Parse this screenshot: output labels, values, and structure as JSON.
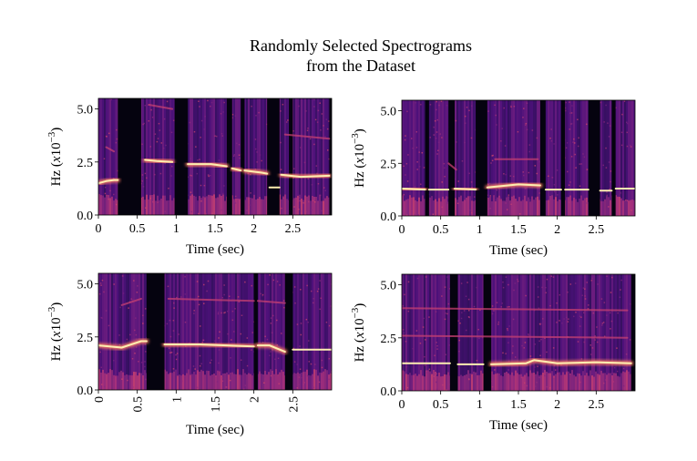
{
  "figure": {
    "title_lines": [
      "Randomly Selected Spectrograms",
      "from the Dataset"
    ]
  },
  "chart_data": [
    {
      "type": "heatmap",
      "title": "",
      "xlabel": "Time (sec)",
      "ylabel": "Hz (x10^-3)",
      "ylabel_parts": {
        "main": "Hz (",
        "italic": "x",
        "num": "10",
        "sup": "−3",
        "close": ")"
      },
      "xlim": [
        0,
        3.0
      ],
      "ylim": [
        0,
        5.5
      ],
      "xticks": [
        0,
        0.5,
        1,
        1.5,
        2,
        2.5
      ],
      "xtick_labels": [
        "0",
        "0.5",
        "1",
        "1.5",
        "2",
        "2.5"
      ],
      "xtick_rotation": 0,
      "yticks": [
        0,
        2.5,
        5
      ],
      "ytick_labels": [
        "0.0",
        "2.5",
        "5.0"
      ],
      "colormap": "magma",
      "gaps": [
        [
          0.25,
          0.55
        ],
        [
          0.98,
          1.15
        ],
        [
          1.65,
          1.72
        ],
        [
          1.83,
          1.88
        ],
        [
          2.17,
          2.33
        ],
        [
          2.45,
          2.5
        ],
        [
          2.97,
          3.0
        ]
      ],
      "contours": [
        {
          "x": [
            0.0,
            0.1,
            0.2,
            0.25
          ],
          "y": [
            1.5,
            1.6,
            1.65,
            1.65
          ]
        },
        {
          "x": [
            0.6,
            0.75,
            0.95
          ],
          "y": [
            2.6,
            2.55,
            2.5
          ]
        },
        {
          "x": [
            1.15,
            1.45,
            1.65
          ],
          "y": [
            2.4,
            2.4,
            2.3
          ]
        },
        {
          "x": [
            1.72,
            1.83
          ],
          "y": [
            2.2,
            2.1
          ]
        },
        {
          "x": [
            1.88,
            2.1,
            2.17
          ],
          "y": [
            2.1,
            2.0,
            1.95
          ]
        },
        {
          "x": [
            2.2,
            2.33
          ],
          "y": [
            1.3,
            1.3
          ]
        },
        {
          "x": [
            2.35,
            2.6,
            2.97
          ],
          "y": [
            1.9,
            1.8,
            1.85
          ]
        }
      ],
      "harmonics": [
        {
          "x": [
            0.1,
            0.2
          ],
          "y": [
            3.2,
            3.0
          ]
        },
        {
          "x": [
            2.4,
            2.97
          ],
          "y": [
            3.8,
            3.6
          ]
        },
        {
          "x": [
            0.65,
            0.95
          ],
          "y": [
            5.2,
            5.0
          ]
        }
      ]
    },
    {
      "type": "heatmap",
      "title": "",
      "xlabel": "Time (sec)",
      "ylabel": "Hz (x10^-3)",
      "ylabel_parts": {
        "main": "Hz (",
        "italic": "x",
        "num": "10",
        "sup": "−3",
        "close": ")"
      },
      "xlim": [
        0,
        3.0
      ],
      "ylim": [
        0,
        5.5
      ],
      "xticks": [
        0,
        0.5,
        1,
        1.5,
        2,
        2.5
      ],
      "xtick_labels": [
        "0",
        "0.5",
        "1",
        "1.5",
        "2",
        "2.5"
      ],
      "xtick_rotation": 0,
      "yticks": [
        0,
        2.5,
        5
      ],
      "ytick_labels": [
        "0.0",
        "2.5",
        "5.0"
      ],
      "colormap": "magma",
      "gaps": [
        [
          0.0,
          0.0
        ],
        [
          0.3,
          0.35
        ],
        [
          0.6,
          0.68
        ],
        [
          0.95,
          1.1
        ],
        [
          1.78,
          1.85
        ],
        [
          2.05,
          2.1
        ],
        [
          2.4,
          2.55
        ],
        [
          2.7,
          2.75
        ]
      ],
      "contours": [
        {
          "x": [
            0.0,
            0.3
          ],
          "y": [
            1.3,
            1.25
          ]
        },
        {
          "x": [
            0.35,
            0.6
          ],
          "y": [
            1.25,
            1.25
          ]
        },
        {
          "x": [
            0.68,
            0.95
          ],
          "y": [
            1.3,
            1.25
          ]
        },
        {
          "x": [
            1.1,
            1.5,
            1.78
          ],
          "y": [
            1.35,
            1.5,
            1.45
          ]
        },
        {
          "x": [
            1.85,
            2.05
          ],
          "y": [
            1.25,
            1.25
          ]
        },
        {
          "x": [
            2.1,
            2.4
          ],
          "y": [
            1.25,
            1.25
          ]
        },
        {
          "x": [
            2.55,
            2.7
          ],
          "y": [
            1.2,
            1.2
          ]
        },
        {
          "x": [
            2.75,
            3.0
          ],
          "y": [
            1.3,
            1.3
          ]
        }
      ],
      "harmonics": [
        {
          "x": [
            1.2,
            1.75
          ],
          "y": [
            2.7,
            2.7
          ]
        },
        {
          "x": [
            0.6,
            0.7
          ],
          "y": [
            2.5,
            2.2
          ]
        }
      ]
    },
    {
      "type": "heatmap",
      "title": "",
      "xlabel": "Time (sec)",
      "ylabel": "Hz (x10^-3)",
      "ylabel_parts": {
        "main": "Hz (",
        "italic": "x",
        "num": "10",
        "sup": "−3",
        "close": ")"
      },
      "xlim": [
        0,
        3.0
      ],
      "ylim": [
        0,
        5.5
      ],
      "xticks": [
        0,
        0.5,
        1,
        1.5,
        2,
        2.5
      ],
      "xtick_labels": [
        "0",
        "0.5",
        "1",
        "1.5",
        "2",
        "2.5"
      ],
      "xtick_rotation": 90,
      "yticks": [
        0,
        2.5,
        5
      ],
      "ytick_labels": [
        "0.0",
        "2.5",
        "5.0"
      ],
      "colormap": "magma",
      "gaps": [
        [
          0.0,
          0.0
        ],
        [
          0.62,
          0.85
        ],
        [
          2.0,
          2.05
        ],
        [
          2.4,
          2.5
        ]
      ],
      "contours": [
        {
          "x": [
            0.0,
            0.3,
            0.55,
            0.62
          ],
          "y": [
            2.1,
            2.0,
            2.3,
            2.3
          ]
        },
        {
          "x": [
            0.85,
            1.3,
            2.0
          ],
          "y": [
            2.15,
            2.15,
            2.05
          ]
        },
        {
          "x": [
            2.05,
            2.2,
            2.4
          ],
          "y": [
            2.1,
            2.1,
            1.8
          ]
        },
        {
          "x": [
            2.5,
            3.0
          ],
          "y": [
            1.9,
            1.9
          ]
        }
      ],
      "harmonics": [
        {
          "x": [
            0.3,
            0.55
          ],
          "y": [
            4.0,
            4.3
          ]
        },
        {
          "x": [
            0.9,
            2.0
          ],
          "y": [
            4.3,
            4.2
          ]
        },
        {
          "x": [
            2.05,
            2.4
          ],
          "y": [
            4.2,
            4.1
          ]
        }
      ]
    },
    {
      "type": "heatmap",
      "title": "",
      "xlabel": "Time (sec)",
      "ylabel": "Hz (x10^-3)",
      "ylabel_parts": {
        "main": "Hz (",
        "italic": "x",
        "num": "10",
        "sup": "−3",
        "close": ")"
      },
      "xlim": [
        0,
        3.0
      ],
      "ylim": [
        0,
        5.5
      ],
      "xticks": [
        0,
        0.5,
        1,
        1.5,
        2,
        2.5
      ],
      "xtick_labels": [
        "0",
        "0.5",
        "1",
        "1.5",
        "2",
        "2.5"
      ],
      "xtick_rotation": 0,
      "yticks": [
        0,
        2.5,
        5
      ],
      "ytick_labels": [
        "0.0",
        "2.5",
        "5.0"
      ],
      "colormap": "magma",
      "gaps": [
        [
          0.62,
          0.72
        ],
        [
          1.05,
          1.15
        ],
        [
          2.95,
          3.0
        ]
      ],
      "contours": [
        {
          "x": [
            0.0,
            0.62
          ],
          "y": [
            1.3,
            1.3
          ]
        },
        {
          "x": [
            0.72,
            1.05
          ],
          "y": [
            1.25,
            1.25
          ]
        },
        {
          "x": [
            1.15,
            1.6,
            1.7,
            2.0,
            2.5,
            2.95
          ],
          "y": [
            1.25,
            1.3,
            1.45,
            1.3,
            1.35,
            1.3
          ]
        }
      ],
      "harmonics": [
        {
          "x": [
            0.0,
            2.9
          ],
          "y": [
            2.6,
            2.5
          ]
        },
        {
          "x": [
            0.0,
            2.9
          ],
          "y": [
            3.9,
            3.8
          ]
        }
      ]
    }
  ]
}
